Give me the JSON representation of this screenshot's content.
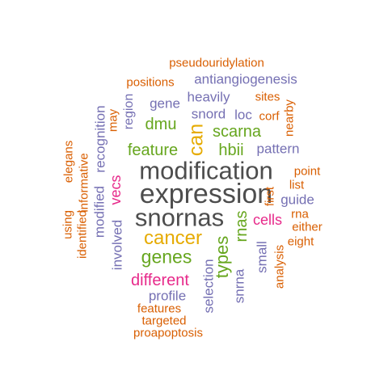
{
  "colors": {
    "gray": "#4d4d4d",
    "orange": "#d95f02",
    "purple": "#7570b3",
    "green": "#66a61e",
    "gold": "#e6ab02",
    "magenta": "#e7298a"
  },
  "words": [
    {
      "text": "expression",
      "color": "gray",
      "vertical": false
    },
    {
      "text": "modification",
      "color": "gray",
      "vertical": false
    },
    {
      "text": "snornas",
      "color": "gray",
      "vertical": false
    },
    {
      "text": "cancer",
      "color": "gold",
      "vertical": false
    },
    {
      "text": "genes",
      "color": "green",
      "vertical": false
    },
    {
      "text": "can",
      "color": "gold",
      "vertical": true
    },
    {
      "text": "different",
      "color": "magenta",
      "vertical": false
    },
    {
      "text": "types",
      "color": "green",
      "vertical": true
    },
    {
      "text": "rnas",
      "color": "green",
      "vertical": true
    },
    {
      "text": "feature",
      "color": "green",
      "vertical": false
    },
    {
      "text": "hbii",
      "color": "green",
      "vertical": false
    },
    {
      "text": "scarna",
      "color": "green",
      "vertical": false
    },
    {
      "text": "dmu",
      "color": "green",
      "vertical": false
    },
    {
      "text": "vecs",
      "color": "magenta",
      "vertical": true
    },
    {
      "text": "cells",
      "color": "magenta",
      "vertical": false
    },
    {
      "text": "antiangiogenesis",
      "color": "purple",
      "vertical": false
    },
    {
      "text": "recognition",
      "color": "purple",
      "vertical": true
    },
    {
      "text": "modified",
      "color": "purple",
      "vertical": true
    },
    {
      "text": "involved",
      "color": "purple",
      "vertical": true
    },
    {
      "text": "selection",
      "color": "purple",
      "vertical": true
    },
    {
      "text": "snrna",
      "color": "purple",
      "vertical": true
    },
    {
      "text": "profile",
      "color": "purple",
      "vertical": false
    },
    {
      "text": "heavily",
      "color": "purple",
      "vertical": false
    },
    {
      "text": "gene",
      "color": "purple",
      "vertical": false
    },
    {
      "text": "snord",
      "color": "purple",
      "vertical": false
    },
    {
      "text": "loc",
      "color": "purple",
      "vertical": false
    },
    {
      "text": "pattern",
      "color": "purple",
      "vertical": false
    },
    {
      "text": "guide",
      "color": "purple",
      "vertical": false
    },
    {
      "text": "small",
      "color": "purple",
      "vertical": true
    },
    {
      "text": "region",
      "color": "purple",
      "vertical": true
    },
    {
      "text": "pseudouridylation",
      "color": "orange",
      "vertical": false
    },
    {
      "text": "positions",
      "color": "orange",
      "vertical": false
    },
    {
      "text": "sites",
      "color": "orange",
      "vertical": false
    },
    {
      "text": "corf",
      "color": "orange",
      "vertical": false
    },
    {
      "text": "nearby",
      "color": "orange",
      "vertical": true
    },
    {
      "text": "may",
      "color": "orange",
      "vertical": true
    },
    {
      "text": "point",
      "color": "orange",
      "vertical": false
    },
    {
      "text": "list",
      "color": "orange",
      "vertical": false
    },
    {
      "text": "first",
      "color": "orange",
      "vertical": true
    },
    {
      "text": "rna",
      "color": "orange",
      "vertical": false
    },
    {
      "text": "either",
      "color": "orange",
      "vertical": false
    },
    {
      "text": "eight",
      "color": "orange",
      "vertical": false
    },
    {
      "text": "analysis",
      "color": "orange",
      "vertical": true
    },
    {
      "text": "elegans",
      "color": "orange",
      "vertical": true
    },
    {
      "text": "informative",
      "color": "orange",
      "vertical": true
    },
    {
      "text": "identified",
      "color": "orange",
      "vertical": true
    },
    {
      "text": "using",
      "color": "orange",
      "vertical": true
    },
    {
      "text": "features",
      "color": "orange",
      "vertical": false
    },
    {
      "text": "targeted",
      "color": "orange",
      "vertical": false
    },
    {
      "text": "proapoptosis",
      "color": "orange",
      "vertical": false
    }
  ]
}
